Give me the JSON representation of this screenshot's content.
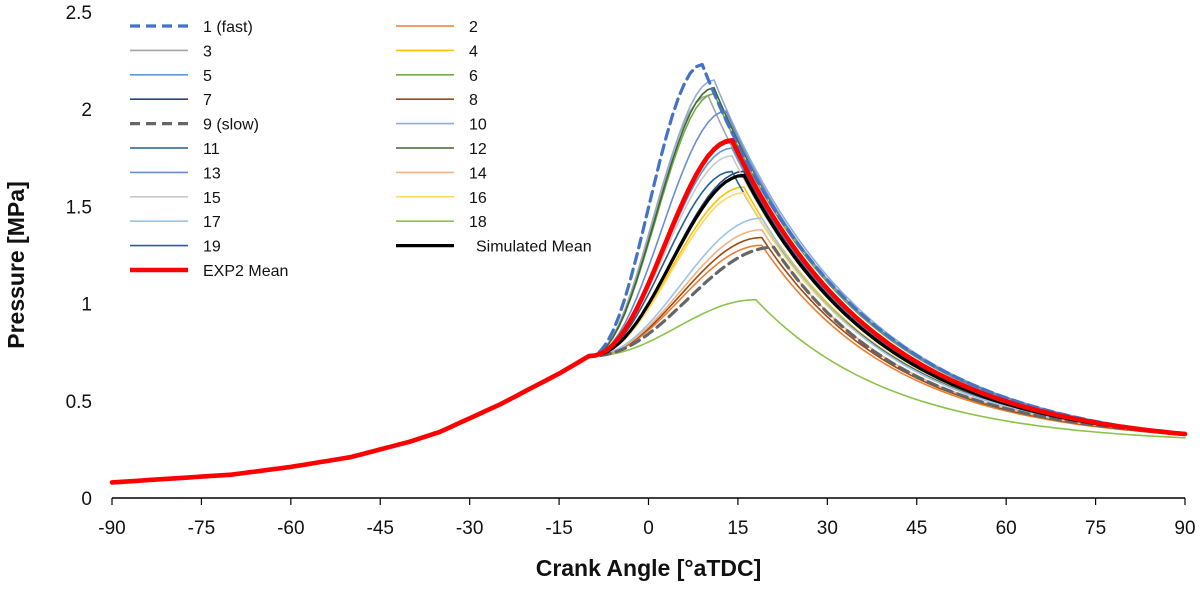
{
  "chart_data": {
    "type": "line",
    "title": "",
    "xlabel": "Crank Angle [°aTDC]",
    "ylabel": "Pressure [MPa]",
    "xlim": [
      -90,
      90
    ],
    "ylim": [
      0,
      2.5
    ],
    "xticks": [
      -90,
      -75,
      -60,
      -45,
      -30,
      -15,
      0,
      15,
      30,
      45,
      60,
      75,
      90
    ],
    "yticks": [
      0,
      0.5,
      1,
      1.5,
      2,
      2.5
    ],
    "ytick_labels": [
      "0",
      "0.5",
      "1",
      "1.5",
      "2",
      "2.5"
    ],
    "grid": false,
    "legend_position": "top-left",
    "series": [
      {
        "name": "1 (fast)",
        "color": "#4472c4",
        "style": "dashed",
        "width": "thick",
        "peak": 2.23,
        "peak_at": 9
      },
      {
        "name": "2",
        "color": "#ed7d31",
        "style": "solid",
        "width": "thin",
        "peak": 1.3,
        "peak_at": 19
      },
      {
        "name": "3",
        "color": "#a5a5a5",
        "style": "solid",
        "width": "thin",
        "peak": 2.07,
        "peak_at": 10
      },
      {
        "name": "4",
        "color": "#ffc000",
        "style": "solid",
        "width": "thin",
        "peak": 1.6,
        "peak_at": 16
      },
      {
        "name": "5",
        "color": "#5b9bd5",
        "style": "solid",
        "width": "thin",
        "peak": 1.8,
        "peak_at": 14
      },
      {
        "name": "6",
        "color": "#70ad47",
        "style": "solid",
        "width": "thin",
        "peak": 2.08,
        "peak_at": 11
      },
      {
        "name": "7",
        "color": "#264478",
        "style": "solid",
        "width": "thin",
        "peak": 1.68,
        "peak_at": 16
      },
      {
        "name": "8",
        "color": "#9e480e",
        "style": "solid",
        "width": "thin",
        "peak": 1.34,
        "peak_at": 19
      },
      {
        "name": "9 (slow)",
        "color": "#666666",
        "style": "dashed",
        "width": "thick",
        "peak": 1.29,
        "peak_at": 21
      },
      {
        "name": "10",
        "color": "#8faadc",
        "style": "solid",
        "width": "thin",
        "peak": 2.15,
        "peak_at": 11
      },
      {
        "name": "11",
        "color": "#255e91",
        "style": "solid",
        "width": "thin",
        "peak": 1.68,
        "peak_at": 14
      },
      {
        "name": "12",
        "color": "#43682b",
        "style": "solid",
        "width": "thin",
        "peak": 2.11,
        "peak_at": 11
      },
      {
        "name": "13",
        "color": "#698ed0",
        "style": "solid",
        "width": "thin",
        "peak": 1.99,
        "peak_at": 13
      },
      {
        "name": "14",
        "color": "#f4b183",
        "style": "solid",
        "width": "thin",
        "peak": 1.38,
        "peak_at": 19
      },
      {
        "name": "15",
        "color": "#c9c9c9",
        "style": "solid",
        "width": "thin",
        "peak": 1.76,
        "peak_at": 14
      },
      {
        "name": "16",
        "color": "#ffd966",
        "style": "solid",
        "width": "thin",
        "peak": 1.57,
        "peak_at": 16
      },
      {
        "name": "17",
        "color": "#9dc3e6",
        "style": "solid",
        "width": "thin",
        "peak": 1.44,
        "peak_at": 19
      },
      {
        "name": "18",
        "color": "#8bc34a",
        "style": "solid",
        "width": "thin",
        "peak": 1.02,
        "peak_at": 18
      },
      {
        "name": "19",
        "color": "#335aa1",
        "style": "solid",
        "width": "thin",
        "peak": 1.83,
        "peak_at": 14
      },
      {
        "name": "Simulated Mean",
        "color": "#000000",
        "style": "solid",
        "width": "thick",
        "peak": 1.66,
        "peak_at": 16
      },
      {
        "name": "EXP2 Mean",
        "color": "#ff0000",
        "style": "solid",
        "width": "extra-thick",
        "peak": 1.84,
        "peak_at": 14
      }
    ],
    "motoring_trace": {
      "x": [
        -90,
        -80,
        -70,
        -60,
        -50,
        -45,
        -40,
        -35,
        -30,
        -25,
        -20,
        -15,
        -10
      ],
      "y": [
        0.08,
        0.1,
        0.12,
        0.16,
        0.21,
        0.25,
        0.29,
        0.34,
        0.41,
        0.48,
        0.56,
        0.64,
        0.73
      ]
    },
    "tail_end_values": {
      "x": 90,
      "fast": 0.24,
      "slow": 0.29
    }
  }
}
